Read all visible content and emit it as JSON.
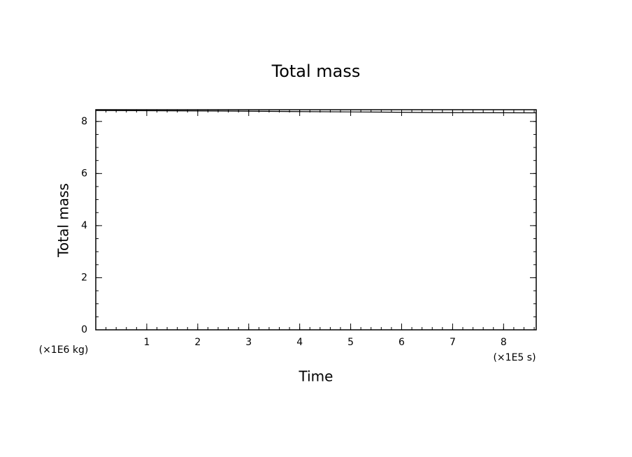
{
  "chart_data": {
    "type": "line",
    "title": "Total mass",
    "xlabel": "Time",
    "ylabel": "Total mass",
    "x_unit": "(×1E5 s)",
    "y_unit": "(×1E6 kg)",
    "x": [
      0,
      2.4,
      3.8,
      5.5,
      6.7,
      8.64
    ],
    "series": [
      {
        "name": "Total mass",
        "color": "#000000",
        "values": [
          8.42,
          8.4,
          8.38,
          8.36,
          8.34,
          8.33
        ]
      }
    ],
    "xlim": [
      0,
      8.64
    ],
    "ylim": [
      0,
      8.45
    ],
    "xticks": [
      1,
      2,
      3,
      4,
      5,
      6,
      7,
      8
    ],
    "yticks": [
      0,
      2,
      4,
      6,
      8
    ],
    "minor_tick_step": {
      "x": 0.2,
      "y": 0.5
    },
    "grid": false
  }
}
